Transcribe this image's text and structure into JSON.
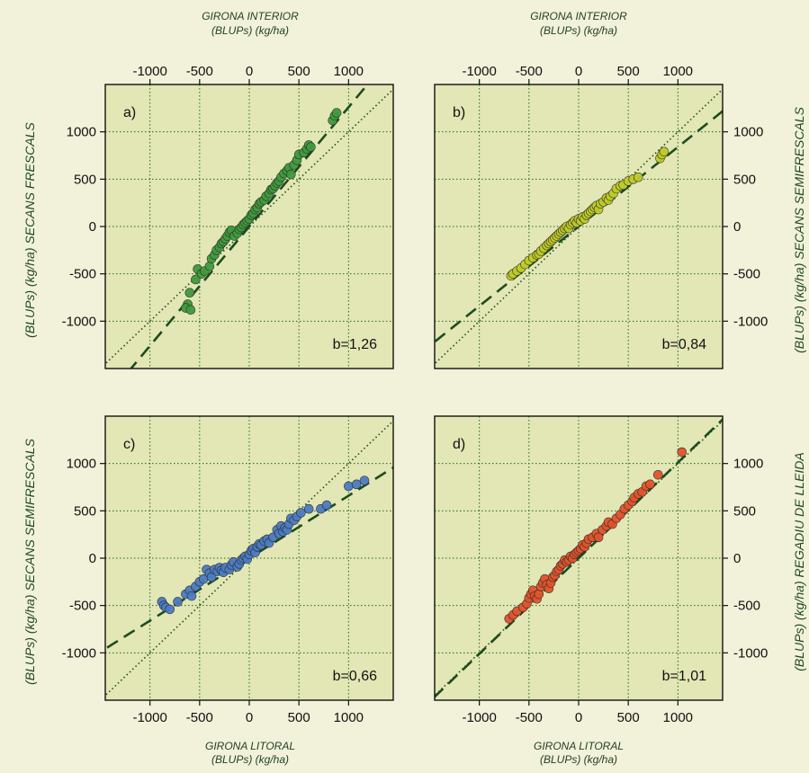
{
  "figure": {
    "top_title": [
      "GIRONA INTERIOR",
      "(BLUPs) (kg/ha)"
    ],
    "bottom_title": [
      "GIRONA LITORAL",
      "(BLUPs) (kg/ha)"
    ],
    "left_top_label": "(BLUPs) (kg/ha) SECANS FRESCALS",
    "left_bottom_label": "(BLUPs) (kg/ha) SECANS SEMIFRESCALS",
    "right_top_label": "(BLUPs) (kg/ha) SECANS SEMIFRESCALS",
    "right_bottom_label": "(BLUPs) (kg/ha) REGADIU DE LLEIDA"
  },
  "chart_data": [
    {
      "type": "scatter",
      "panel_label": "a)",
      "slope_label": "b=1,26",
      "slope": 1.26,
      "color": "#3f9a3c",
      "xlim": [
        -1450,
        1450
      ],
      "ylim": [
        -1500,
        1500
      ],
      "xticks": [
        -1000,
        -500,
        0,
        500,
        1000
      ],
      "yticks": [
        1000,
        500,
        0,
        -500,
        -1000
      ],
      "grid": true,
      "x": [
        -620,
        -640,
        -590,
        -600,
        -540,
        -520,
        -480,
        -450,
        -400,
        -380,
        -350,
        -330,
        -300,
        -280,
        -260,
        -240,
        -220,
        -200,
        -180,
        -150,
        -120,
        -100,
        -80,
        -60,
        -40,
        -20,
        0,
        20,
        40,
        60,
        80,
        100,
        120,
        150,
        170,
        200,
        220,
        240,
        260,
        280,
        300,
        320,
        350,
        380,
        400,
        420,
        450,
        480,
        500,
        550,
        580,
        600,
        620,
        840,
        860,
        880
      ],
      "y": [
        -820,
        -860,
        -880,
        -700,
        -560,
        -450,
        -500,
        -470,
        -420,
        -340,
        -300,
        -250,
        -220,
        -180,
        -160,
        -130,
        -100,
        -60,
        -40,
        -100,
        -70,
        -30,
        -10,
        20,
        40,
        60,
        80,
        120,
        140,
        180,
        200,
        240,
        260,
        280,
        320,
        350,
        390,
        400,
        430,
        460,
        480,
        520,
        560,
        590,
        620,
        550,
        650,
        700,
        760,
        780,
        820,
        860,
        840,
        1120,
        1170,
        1200
      ]
    },
    {
      "type": "scatter",
      "panel_label": "b)",
      "slope_label": "b=0,84",
      "slope": 0.84,
      "color": "#bfcb27",
      "xlim": [
        -1450,
        1450
      ],
      "ylim": [
        -1500,
        1500
      ],
      "xticks": [
        -1000,
        -500,
        0,
        500,
        1000
      ],
      "yticks": [
        1000,
        500,
        0,
        -500,
        -1000
      ],
      "grid": true,
      "x": [
        -680,
        -660,
        -620,
        -580,
        -540,
        -500,
        -460,
        -420,
        -400,
        -380,
        -350,
        -320,
        -300,
        -280,
        -260,
        -240,
        -220,
        -200,
        -180,
        -160,
        -140,
        -120,
        -100,
        -80,
        -60,
        -40,
        -20,
        0,
        20,
        40,
        60,
        80,
        100,
        120,
        140,
        160,
        180,
        200,
        220,
        250,
        280,
        300,
        320,
        350,
        380,
        420,
        450,
        500,
        550,
        600,
        820,
        840,
        860
      ],
      "y": [
        -520,
        -500,
        -470,
        -440,
        -400,
        -360,
        -330,
        -300,
        -290,
        -260,
        -230,
        -200,
        -180,
        -160,
        -140,
        -120,
        -100,
        -80,
        -60,
        -40,
        -20,
        0,
        -20,
        20,
        40,
        60,
        40,
        80,
        60,
        100,
        80,
        120,
        140,
        160,
        180,
        200,
        220,
        180,
        240,
        260,
        300,
        280,
        320,
        350,
        400,
        430,
        440,
        480,
        500,
        520,
        720,
        760,
        790
      ]
    },
    {
      "type": "scatter",
      "panel_label": "c)",
      "slope_label": "b=0,66",
      "slope": 0.66,
      "color": "#4b7bc2",
      "xlim": [
        -1450,
        1450
      ],
      "ylim": [
        -1500,
        1500
      ],
      "xticks": [
        -1000,
        -500,
        0,
        500,
        1000
      ],
      "yticks": [
        1000,
        500,
        0,
        -500,
        -1000
      ],
      "grid": true,
      "x": [
        -880,
        -860,
        -840,
        -800,
        -720,
        -640,
        -600,
        -580,
        -540,
        -500,
        -460,
        -430,
        -400,
        -380,
        -350,
        -320,
        -300,
        -280,
        -260,
        -240,
        -200,
        -180,
        -160,
        -120,
        -100,
        -80,
        -60,
        -40,
        -20,
        0,
        20,
        40,
        60,
        80,
        100,
        120,
        150,
        180,
        200,
        240,
        280,
        300,
        320,
        340,
        360,
        380,
        400,
        420,
        450,
        480,
        520,
        600,
        720,
        780,
        1000,
        1080,
        1160
      ],
      "y": [
        -460,
        -500,
        -520,
        -540,
        -460,
        -380,
        -340,
        -400,
        -300,
        -250,
        -220,
        -120,
        -160,
        -200,
        -120,
        -140,
        -100,
        -130,
        -150,
        -100,
        -120,
        -70,
        -40,
        -90,
        -60,
        -20,
        0,
        20,
        -10,
        40,
        80,
        100,
        60,
        120,
        150,
        140,
        180,
        200,
        160,
        220,
        300,
        260,
        340,
        280,
        320,
        300,
        360,
        420,
        400,
        440,
        480,
        520,
        520,
        560,
        760,
        780,
        820
      ]
    },
    {
      "type": "scatter",
      "panel_label": "d)",
      "slope_label": "b=1,01",
      "slope": 1.01,
      "color": "#e1532c",
      "xlim": [
        -1450,
        1450
      ],
      "ylim": [
        -1500,
        1500
      ],
      "xticks": [
        -1000,
        -500,
        0,
        500,
        1000
      ],
      "yticks": [
        1000,
        500,
        0,
        -500,
        -1000
      ],
      "grid": true,
      "x": [
        -700,
        -660,
        -620,
        -560,
        -520,
        -500,
        -480,
        -460,
        -440,
        -420,
        -400,
        -380,
        -360,
        -340,
        -320,
        -300,
        -280,
        -260,
        -240,
        -220,
        -200,
        -180,
        -160,
        -140,
        -120,
        -100,
        -80,
        -60,
        -40,
        -20,
        0,
        20,
        40,
        60,
        80,
        100,
        140,
        180,
        200,
        240,
        280,
        300,
        340,
        380,
        420,
        460,
        500,
        540,
        560,
        600,
        640,
        680,
        720,
        800,
        1040
      ],
      "y": [
        -640,
        -600,
        -560,
        -520,
        -480,
        -420,
        -380,
        -340,
        -400,
        -430,
        -380,
        -300,
        -260,
        -220,
        -280,
        -320,
        -260,
        -200,
        -180,
        -140,
        -120,
        -80,
        -60,
        -20,
        -40,
        -20,
        20,
        0,
        40,
        60,
        80,
        100,
        140,
        120,
        160,
        200,
        220,
        260,
        220,
        300,
        340,
        380,
        360,
        420,
        460,
        520,
        560,
        600,
        640,
        680,
        700,
        760,
        780,
        880,
        1120
      ]
    }
  ]
}
